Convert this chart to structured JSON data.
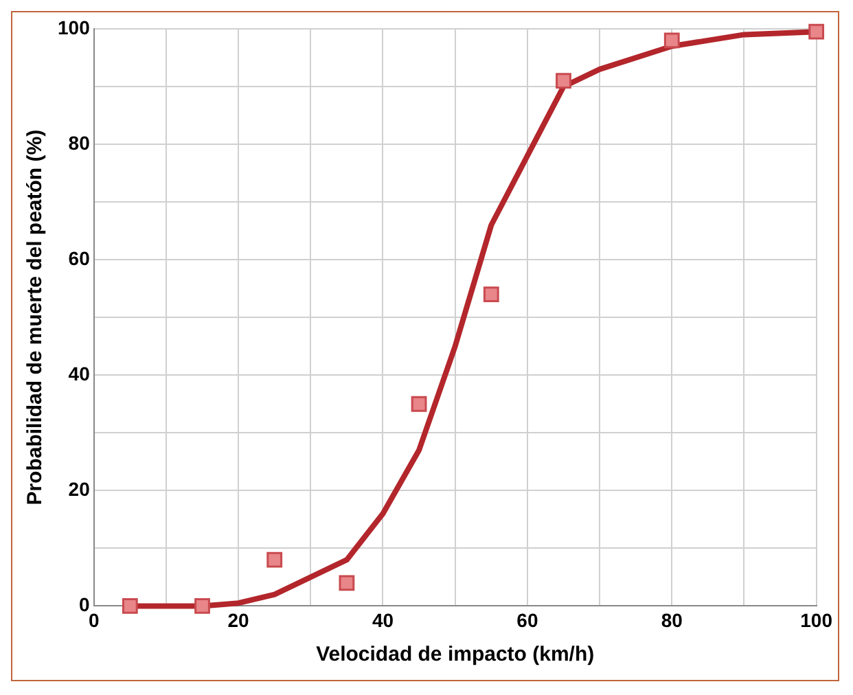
{
  "chart_data": {
    "type": "line",
    "xlabel": "Velocidad de impacto (km/h)",
    "ylabel": "Probabilidad de muerte del peatón (%)",
    "series": [
      {
        "type": "line",
        "color": "#b3262b",
        "marker": "none",
        "x": [
          5,
          15,
          20,
          25,
          30,
          35,
          40,
          45,
          50,
          55,
          60,
          65,
          70,
          80,
          90,
          100
        ],
        "values": [
          0,
          0,
          0.5,
          2,
          5,
          8,
          16,
          27,
          45,
          66,
          78,
          90,
          93,
          97,
          99,
          99.5
        ]
      },
      {
        "type": "scatter",
        "color": "#e8868a",
        "marker": "square",
        "x": [
          5,
          15,
          25,
          35,
          45,
          55,
          65,
          80,
          100
        ],
        "values": [
          0,
          0,
          8,
          4,
          35,
          54,
          91,
          98,
          99.5
        ]
      }
    ],
    "xlim": [
      0,
      100
    ],
    "xticks": [
      0,
      {
        "value": 10,
        "label": null
      },
      20,
      {
        "value": 30,
        "label": null
      },
      40,
      {
        "value": 50,
        "label": null
      },
      60,
      {
        "value": 70,
        "label": null
      },
      80,
      {
        "value": 90,
        "label": null
      },
      100
    ],
    "ylim": [
      0,
      100
    ],
    "yticks": [
      0,
      {
        "value": 10,
        "label": null
      },
      20,
      {
        "value": 30,
        "label": null
      },
      40,
      {
        "value": 50,
        "label": null
      },
      60,
      {
        "value": 70,
        "label": null
      },
      80,
      {
        "value": 90,
        "label": null
      },
      100
    ],
    "grid": true,
    "legend": false
  }
}
